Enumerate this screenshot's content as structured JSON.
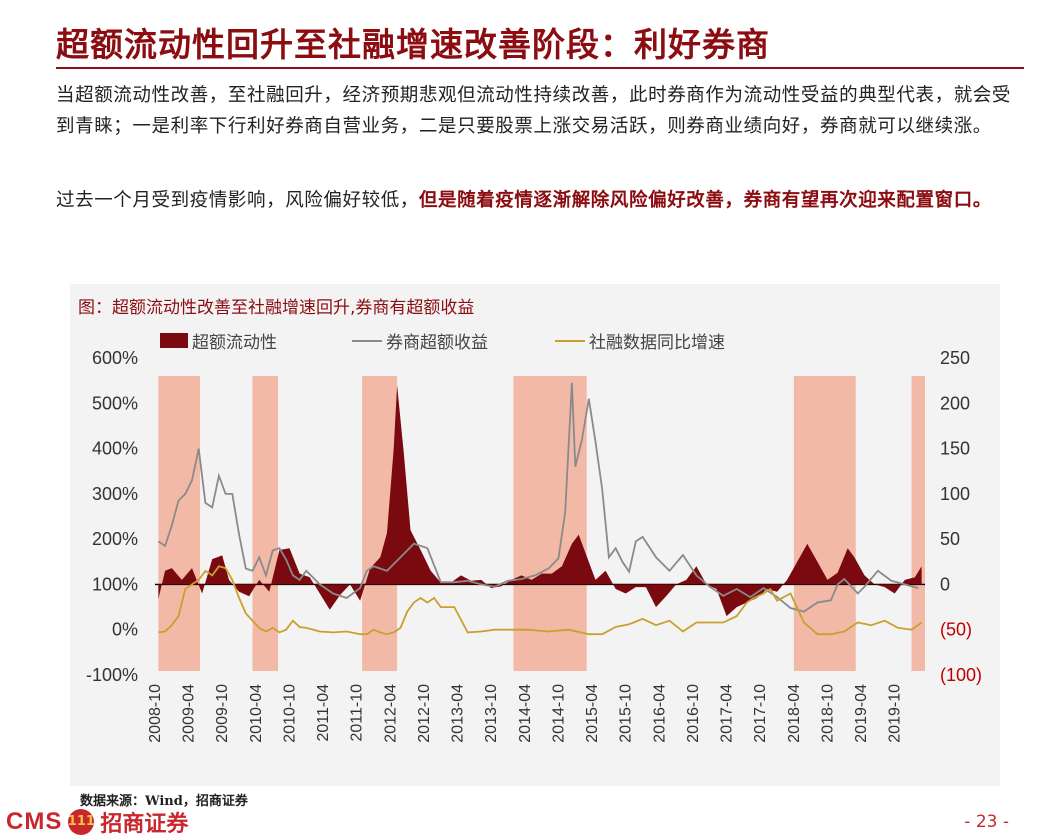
{
  "page": {
    "title": "超额流动性回升至社融增速改善阶段：利好券商",
    "para1": "当超额流动性改善，至社融回升，经济预期悲观但流动性持续改善，此时券商作为流动性受益的典型代表，就会受到青睐；一是利率下行利好券商自营业务，二是只要股票上涨交易活跃，则券商业绩向好，券商就可以继续涨。",
    "para2_normal": "过去一个月受到疫情影响，风险偏好较低，",
    "para2_highlight": "但是随着疫情逐渐解除风险偏好改善，券商有望再次迎来配置窗口。",
    "source": "数据来源：Wind，招商证券",
    "logo_text": "CMS",
    "logo_badge": "111",
    "brand": "招商证券",
    "page_number": "- 23 -"
  },
  "chart_data": {
    "type": "area",
    "title": "图：超额流动性改善至社融增速回升,券商有超额收益",
    "legend": [
      "超额流动性",
      "券商超额收益",
      "社融数据同比增速"
    ],
    "colors": {
      "liquidity": "#7a0a0f",
      "broker": "#8a8a8a",
      "tsf": "#c9a030",
      "shade": "#f2b9a7",
      "right_neg": "#c00000"
    },
    "x_ticks": [
      "2008-10",
      "2009-04",
      "2009-10",
      "2010-04",
      "2010-10",
      "2011-04",
      "2011-10",
      "2012-04",
      "2012-10",
      "2013-04",
      "2013-10",
      "2014-04",
      "2014-10",
      "2015-04",
      "2015-10",
      "2016-04",
      "2016-10",
      "2017-04",
      "2017-10",
      "2018-04",
      "2018-10",
      "2019-04",
      "2019-10"
    ],
    "left_axis": {
      "ylim": [
        -100,
        600
      ],
      "ticks": [
        "-100%",
        "0%",
        "100%",
        "200%",
        "300%",
        "400%",
        "500%",
        "600%"
      ]
    },
    "right_axis": {
      "ylim": [
        -100,
        250
      ],
      "ticks": [
        "(100)",
        "(50)",
        "0",
        "50",
        "100",
        "150",
        "200",
        "250"
      ]
    },
    "shaded_periods": [
      [
        2008.8,
        2009.42
      ],
      [
        2010.2,
        2010.58
      ],
      [
        2011.83,
        2012.35
      ],
      [
        2014.08,
        2015.17
      ],
      [
        2018.25,
        2019.17
      ],
      [
        2020.0,
        2020.2
      ]
    ],
    "series": [
      {
        "name": "超额流动性",
        "axis": "right",
        "x": [
          2008.8,
          2008.9,
          2009.0,
          2009.15,
          2009.3,
          2009.45,
          2009.6,
          2009.75,
          2009.85,
          2010.0,
          2010.15,
          2010.3,
          2010.45,
          2010.6,
          2010.75,
          2010.9,
          2011.05,
          2011.2,
          2011.35,
          2011.5,
          2011.65,
          2011.8,
          2011.95,
          2012.1,
          2012.2,
          2012.3,
          2012.35,
          2012.45,
          2012.55,
          2012.7,
          2012.85,
          2013.0,
          2013.15,
          2013.3,
          2013.45,
          2013.6,
          2013.75,
          2013.9,
          2014.05,
          2014.2,
          2014.35,
          2014.5,
          2014.65,
          2014.8,
          2014.95,
          2015.05,
          2015.15,
          2015.3,
          2015.45,
          2015.6,
          2015.75,
          2015.9,
          2016.05,
          2016.2,
          2016.35,
          2016.5,
          2016.65,
          2016.8,
          2016.95,
          2017.1,
          2017.25,
          2017.4,
          2017.55,
          2017.7,
          2017.85,
          2018.0,
          2018.15,
          2018.3,
          2018.45,
          2018.6,
          2018.75,
          2018.9,
          2019.05,
          2019.15,
          2019.3,
          2019.45,
          2019.6,
          2019.75,
          2019.9,
          2020.05,
          2020.15
        ],
        "values": [
          -16,
          15,
          18,
          5,
          18,
          -10,
          28,
          32,
          5,
          -8,
          -13,
          5,
          -8,
          38,
          40,
          12,
          8,
          -10,
          -28,
          -12,
          0,
          -18,
          18,
          30,
          57,
          150,
          220,
          145,
          60,
          38,
          15,
          2,
          2,
          10,
          4,
          5,
          -4,
          -2,
          5,
          10,
          5,
          12,
          12,
          20,
          45,
          55,
          35,
          5,
          15,
          -5,
          -10,
          -3,
          -3,
          -25,
          -13,
          0,
          5,
          20,
          0,
          -5,
          -35,
          -25,
          -20,
          -15,
          -5,
          -8,
          5,
          25,
          45,
          25,
          5,
          13,
          40,
          30,
          10,
          0,
          -3,
          -10,
          5,
          8,
          20
        ]
      },
      {
        "name": "券商超额收益",
        "axis": "left",
        "x": [
          2008.8,
          2008.9,
          2009.0,
          2009.1,
          2009.2,
          2009.3,
          2009.4,
          2009.5,
          2009.6,
          2009.7,
          2009.8,
          2009.9,
          2010.0,
          2010.1,
          2010.2,
          2010.3,
          2010.4,
          2010.5,
          2010.6,
          2010.7,
          2010.8,
          2010.9,
          2011.0,
          2011.2,
          2011.4,
          2011.6,
          2011.8,
          2011.9,
          2012.0,
          2012.2,
          2012.4,
          2012.6,
          2012.8,
          2013.0,
          2013.2,
          2013.4,
          2013.6,
          2013.8,
          2014.0,
          2014.2,
          2014.4,
          2014.6,
          2014.75,
          2014.85,
          2014.95,
          2015.0,
          2015.1,
          2015.2,
          2015.3,
          2015.4,
          2015.5,
          2015.6,
          2015.7,
          2015.8,
          2015.9,
          2016.0,
          2016.2,
          2016.4,
          2016.6,
          2016.8,
          2017.0,
          2017.2,
          2017.4,
          2017.6,
          2017.8,
          2018.0,
          2018.2,
          2018.4,
          2018.6,
          2018.8,
          2018.9,
          2019.0,
          2019.2,
          2019.3,
          2019.5,
          2019.7,
          2019.9,
          2020.1
        ],
        "values": [
          195,
          185,
          230,
          285,
          300,
          330,
          400,
          280,
          270,
          340,
          300,
          300,
          210,
          135,
          130,
          160,
          120,
          175,
          180,
          155,
          120,
          110,
          130,
          100,
          80,
          70,
          92,
          130,
          140,
          130,
          160,
          190,
          180,
          105,
          105,
          108,
          100,
          95,
          108,
          112,
          120,
          135,
          158,
          260,
          545,
          360,
          420,
          510,
          415,
          310,
          160,
          180,
          150,
          128,
          195,
          205,
          160,
          130,
          165,
          120,
          95,
          75,
          90,
          72,
          92,
          72,
          48,
          40,
          60,
          65,
          100,
          112,
          80,
          95,
          130,
          108,
          100,
          92
        ]
      },
      {
        "name": "社融数据同比增速",
        "axis": "right",
        "x": [
          2008.8,
          2008.9,
          2009.0,
          2009.1,
          2009.2,
          2009.3,
          2009.4,
          2009.5,
          2009.6,
          2009.7,
          2009.8,
          2009.9,
          2010.0,
          2010.1,
          2010.2,
          2010.3,
          2010.4,
          2010.5,
          2010.6,
          2010.7,
          2010.8,
          2010.9,
          2011.0,
          2011.2,
          2011.4,
          2011.6,
          2011.8,
          2011.9,
          2012.0,
          2012.1,
          2012.2,
          2012.3,
          2012.4,
          2012.5,
          2012.6,
          2012.7,
          2012.8,
          2012.9,
          2013.0,
          2013.2,
          2013.4,
          2013.6,
          2013.8,
          2014.0,
          2014.3,
          2014.6,
          2014.9,
          2015.2,
          2015.4,
          2015.6,
          2015.8,
          2016.0,
          2016.2,
          2016.4,
          2016.6,
          2016.8,
          2017.0,
          2017.2,
          2017.4,
          2017.55,
          2017.65,
          2017.8,
          2017.9,
          2018.0,
          2018.2,
          2018.4,
          2018.6,
          2018.8,
          2019.0,
          2019.2,
          2019.4,
          2019.6,
          2019.8,
          2020.0,
          2020.15
        ],
        "values": [
          -53,
          -52,
          -45,
          -35,
          -5,
          0,
          5,
          15,
          10,
          20,
          18,
          5,
          -15,
          -32,
          -40,
          -48,
          -52,
          -48,
          -53,
          -50,
          -40,
          -47,
          -48,
          -52,
          -53,
          -52,
          -55,
          -55,
          -50,
          -53,
          -55,
          -53,
          -48,
          -30,
          -20,
          -15,
          -20,
          -15,
          -25,
          -25,
          -53,
          -52,
          -50,
          -50,
          -50,
          -52,
          -50,
          -55,
          -55,
          -47,
          -44,
          -38,
          -45,
          -40,
          -52,
          -42,
          -42,
          -42,
          -35,
          -20,
          -15,
          -10,
          -5,
          -18,
          -10,
          -42,
          -55,
          -55,
          -52,
          -42,
          -45,
          -40,
          -48,
          -50,
          -42
        ]
      }
    ]
  }
}
